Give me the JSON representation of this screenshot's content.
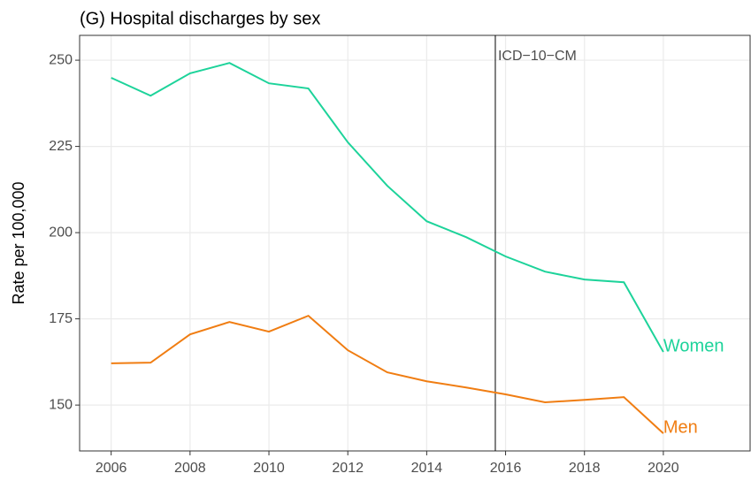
{
  "chart_data": {
    "type": "line",
    "title": "(G) Hospital discharges by sex",
    "y_label": "Rate per 100,000",
    "x": [
      2006,
      2007,
      2008,
      2009,
      2010,
      2011,
      2012,
      2013,
      2014,
      2015,
      2016,
      2017,
      2018,
      2019,
      2020
    ],
    "series": [
      {
        "name": "Women",
        "color": "#1dd39a",
        "values": [
          244.9,
          239.7,
          246.2,
          249.2,
          243.3,
          241.8,
          226.2,
          213.6,
          203.3,
          198.7,
          193.1,
          188.7,
          186.4,
          185.6,
          165.4
        ]
      },
      {
        "name": "Men",
        "color": "#f07d12",
        "values": [
          162.1,
          162.3,
          170.5,
          174.1,
          171.3,
          175.9,
          165.9,
          159.5,
          156.9,
          155.1,
          153.1,
          150.8,
          151.5,
          152.3,
          141.8
        ]
      }
    ],
    "xlim": [
      2005.2,
      2022.2
    ],
    "xticks": [
      2006,
      2008,
      2010,
      2012,
      2014,
      2016,
      2018,
      2020
    ],
    "ylim": [
      136.7,
      257.2
    ],
    "yticks": [
      150,
      175,
      200,
      225,
      250
    ],
    "grid": true,
    "annotation": {
      "x": 2015.74,
      "label": "ICD−10−CM"
    }
  }
}
